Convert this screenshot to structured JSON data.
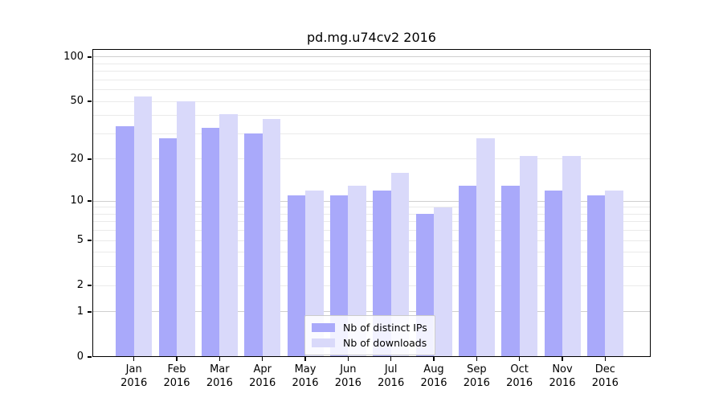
{
  "chart_data": {
    "type": "bar",
    "title": "pd.mg.u74cv2 2016",
    "year_label": "2016",
    "categories": [
      "Jan",
      "Feb",
      "Mar",
      "Apr",
      "May",
      "Jun",
      "Jul",
      "Aug",
      "Sep",
      "Oct",
      "Nov",
      "Dec"
    ],
    "series": [
      {
        "name": "Nb of distinct IPs",
        "color": "#a9a9fa",
        "values": [
          34,
          28,
          33,
          30,
          11,
          11,
          12,
          8,
          13,
          13,
          12,
          11
        ]
      },
      {
        "name": "Nb of downloads",
        "color": "#d9d9fa",
        "values": [
          54,
          50,
          41,
          38,
          12,
          13,
          16,
          9,
          28,
          21,
          21,
          12
        ]
      }
    ],
    "yscale": "log1p",
    "ylim": [
      0,
      113
    ],
    "yticks": [
      0,
      1,
      2,
      5,
      10,
      20,
      50,
      100
    ],
    "y_gridlines_major": [
      1,
      10,
      100
    ],
    "y_gridlines_minor": [
      2,
      3,
      4,
      5,
      6,
      7,
      8,
      9,
      20,
      30,
      40,
      50,
      60,
      70,
      80,
      90
    ],
    "grid": true,
    "legend_position": "lower center"
  },
  "colors": {
    "background": "#ffffff",
    "bar_ips": "#a9a9fa",
    "bar_downloads": "#d9d9fa",
    "gridline_major": "#cfcfcf",
    "gridline_minor": "#eaeaea",
    "spine": "#000000",
    "legend_border": "#cccccc"
  }
}
